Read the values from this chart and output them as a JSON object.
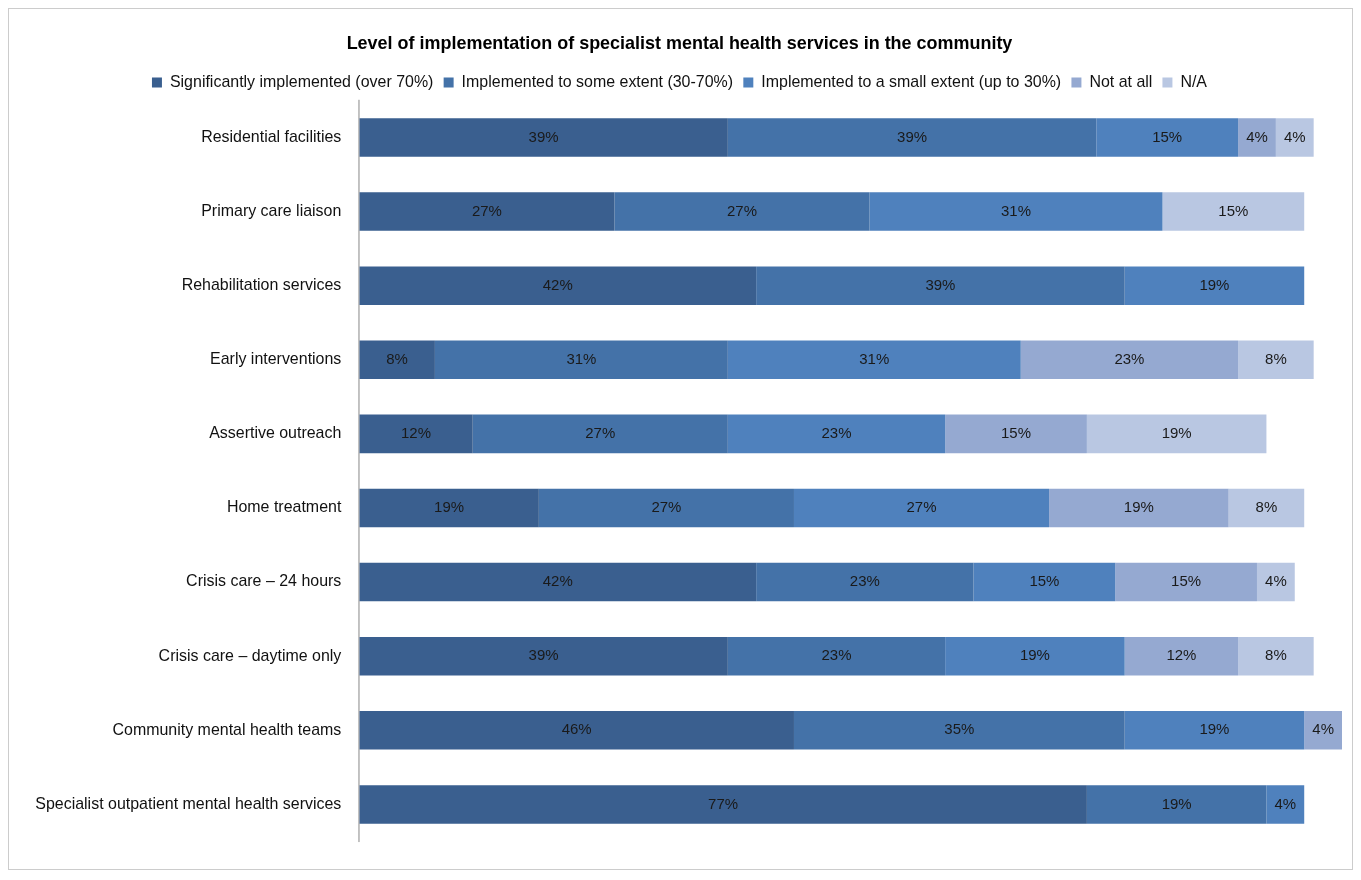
{
  "chart_data": {
    "type": "bar",
    "orientation": "horizontal",
    "stacked": true,
    "tick_labels": "y",
    "title": "Level of implementation of specialist mental health services in the community",
    "legend": "top",
    "categories": [
      "Residential facilities",
      "Primary care liaison",
      "Rehabilitation services",
      "Early interventions",
      "Assertive outreach",
      "Home treatment",
      "Crisis care – 24 hours",
      "Crisis care – daytime only",
      "Community mental health teams",
      "Specialist outpatient mental health services"
    ],
    "series": [
      {
        "name": "Significantly implemented (over 70%)",
        "color": "#3a5f8f",
        "values": [
          39,
          27,
          42,
          8,
          12,
          19,
          42,
          39,
          46,
          77
        ],
        "value_labels": [
          "39%",
          "27%",
          "42%",
          "8%",
          "12%",
          "19%",
          "42%",
          "39%",
          "46%",
          "77%"
        ]
      },
      {
        "name": "Implemented to some extent (30-70%)",
        "color": "#4472a8",
        "values": [
          39,
          27,
          39,
          31,
          27,
          27,
          23,
          23,
          35,
          19
        ],
        "value_labels": [
          "39%",
          "27%",
          "39%",
          "31%",
          "27%",
          "27%",
          "23%",
          "23%",
          "35%",
          "19%"
        ]
      },
      {
        "name": "Implemented to a small extent (up to 30%)",
        "color": "#4f81bd",
        "values": [
          15,
          31,
          19,
          31,
          23,
          27,
          15,
          19,
          19,
          4
        ],
        "value_labels": [
          "15%",
          "31%",
          "19%",
          "31%",
          "23%",
          "27%",
          "15%",
          "19%",
          "19%",
          "4%"
        ]
      },
      {
        "name": "Not at all",
        "color": "#95a9d1",
        "values": [
          4,
          null,
          null,
          23,
          15,
          19,
          15,
          12,
          4,
          null
        ],
        "value_labels": [
          "4%",
          null,
          null,
          "23%",
          "15%",
          "19%",
          "15%",
          "12%",
          "4%",
          null
        ]
      },
      {
        "name": "N/A",
        "color": "#b9c7e2",
        "values": [
          4,
          15,
          null,
          8,
          19,
          8,
          4,
          8,
          null,
          null
        ],
        "value_labels": [
          "4%",
          "15%",
          null,
          "8%",
          "19%",
          "8%",
          "4%",
          "8%",
          null,
          null
        ]
      }
    ]
  }
}
